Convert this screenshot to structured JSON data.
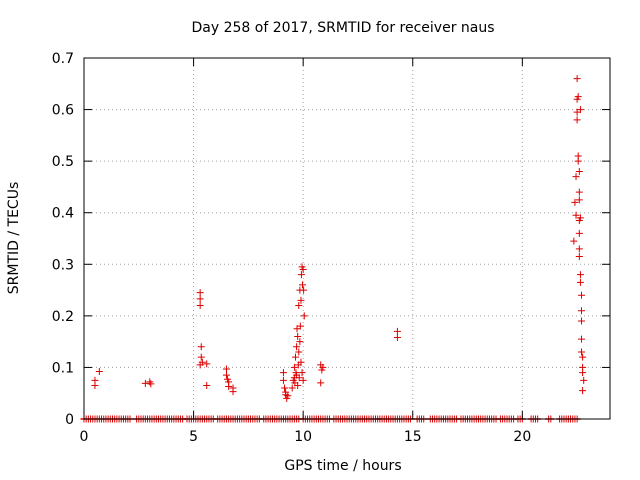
{
  "chart_data": {
    "type": "scatter",
    "title": "Day 258 of 2017, SRMTID for receiver naus",
    "xlabel": "GPS time / hours",
    "ylabel": "SRMTID / TECUs",
    "xlim": [
      0,
      24
    ],
    "ylim": [
      0,
      0.7
    ],
    "xticks": [
      "0",
      "5",
      "10",
      "15",
      "20"
    ],
    "yticks": [
      "0",
      "0.1",
      "0.2",
      "0.3",
      "0.4",
      "0.5",
      "0.6",
      "0.7"
    ],
    "grid": true,
    "marker": "+",
    "color": "#dd0000",
    "points": [
      [
        0.5,
        0.065
      ],
      [
        0.5,
        0.075
      ],
      [
        0.7,
        0.092
      ],
      [
        2.8,
        0.069
      ],
      [
        3.0,
        0.072
      ],
      [
        3.05,
        0.068
      ],
      [
        5.3,
        0.245
      ],
      [
        5.3,
        0.233
      ],
      [
        5.3,
        0.22
      ],
      [
        5.35,
        0.14
      ],
      [
        5.35,
        0.12
      ],
      [
        5.3,
        0.105
      ],
      [
        5.4,
        0.11
      ],
      [
        5.6,
        0.065
      ],
      [
        5.6,
        0.107
      ],
      [
        6.5,
        0.097
      ],
      [
        6.5,
        0.085
      ],
      [
        6.55,
        0.077
      ],
      [
        6.6,
        0.072
      ],
      [
        6.6,
        0.063
      ],
      [
        6.8,
        0.06
      ],
      [
        6.8,
        0.053
      ],
      [
        9.1,
        0.09
      ],
      [
        9.1,
        0.075
      ],
      [
        9.15,
        0.06
      ],
      [
        9.2,
        0.052
      ],
      [
        9.2,
        0.047
      ],
      [
        9.25,
        0.04
      ],
      [
        9.3,
        0.045
      ],
      [
        9.5,
        0.06
      ],
      [
        9.55,
        0.075
      ],
      [
        9.6,
        0.08
      ],
      [
        9.6,
        0.1
      ],
      [
        9.62,
        0.07
      ],
      [
        9.65,
        0.12
      ],
      [
        9.67,
        0.09
      ],
      [
        9.7,
        0.14
      ],
      [
        9.72,
        0.175
      ],
      [
        9.75,
        0.16
      ],
      [
        9.78,
        0.105
      ],
      [
        9.8,
        0.22
      ],
      [
        9.82,
        0.08
      ],
      [
        9.85,
        0.25
      ],
      [
        9.87,
        0.18
      ],
      [
        9.9,
        0.23
      ],
      [
        9.92,
        0.28
      ],
      [
        9.95,
        0.295
      ],
      [
        9.97,
        0.26
      ],
      [
        10.0,
        0.29
      ],
      [
        10.02,
        0.25
      ],
      [
        10.05,
        0.2
      ],
      [
        9.8,
        0.13
      ],
      [
        9.85,
        0.15
      ],
      [
        9.9,
        0.11
      ],
      [
        9.95,
        0.09
      ],
      [
        10.0,
        0.075
      ],
      [
        9.75,
        0.065
      ],
      [
        9.7,
        0.085
      ],
      [
        10.8,
        0.105
      ],
      [
        10.85,
        0.095
      ],
      [
        10.8,
        0.07
      ],
      [
        10.9,
        0.1
      ],
      [
        14.3,
        0.17
      ],
      [
        14.3,
        0.158
      ],
      [
        22.35,
        0.345
      ],
      [
        22.4,
        0.42
      ],
      [
        22.45,
        0.47
      ],
      [
        22.45,
        0.395
      ],
      [
        22.5,
        0.66
      ],
      [
        22.5,
        0.62
      ],
      [
        22.5,
        0.595
      ],
      [
        22.5,
        0.58
      ],
      [
        22.55,
        0.51
      ],
      [
        22.55,
        0.5
      ],
      [
        22.6,
        0.44
      ],
      [
        22.6,
        0.425
      ],
      [
        22.6,
        0.385
      ],
      [
        22.6,
        0.36
      ],
      [
        22.6,
        0.33
      ],
      [
        22.6,
        0.315
      ],
      [
        22.65,
        0.28
      ],
      [
        22.65,
        0.265
      ],
      [
        22.7,
        0.24
      ],
      [
        22.7,
        0.21
      ],
      [
        22.7,
        0.19
      ],
      [
        22.7,
        0.155
      ],
      [
        22.7,
        0.13
      ],
      [
        22.75,
        0.12
      ],
      [
        22.75,
        0.1
      ],
      [
        22.75,
        0.09
      ],
      [
        22.8,
        0.075
      ],
      [
        22.75,
        0.055
      ],
      [
        22.65,
        0.6
      ],
      [
        22.55,
        0.625
      ],
      [
        22.6,
        0.48
      ],
      [
        22.65,
        0.39
      ]
    ],
    "zero_segments": [
      [
        0.0,
        2.1
      ],
      [
        2.4,
        4.5
      ],
      [
        4.7,
        5.9
      ],
      [
        6.1,
        8.0
      ],
      [
        8.2,
        9.8
      ],
      [
        10.0,
        11.2
      ],
      [
        11.4,
        13.4
      ],
      [
        13.5,
        14.9
      ],
      [
        15.2,
        15.5
      ],
      [
        15.8,
        17.0
      ],
      [
        17.2,
        18.8
      ],
      [
        19.0,
        19.6
      ],
      [
        19.8,
        20.0
      ],
      [
        20.4,
        20.7
      ],
      [
        21.2,
        21.3
      ],
      [
        21.7,
        22.5
      ]
    ]
  }
}
